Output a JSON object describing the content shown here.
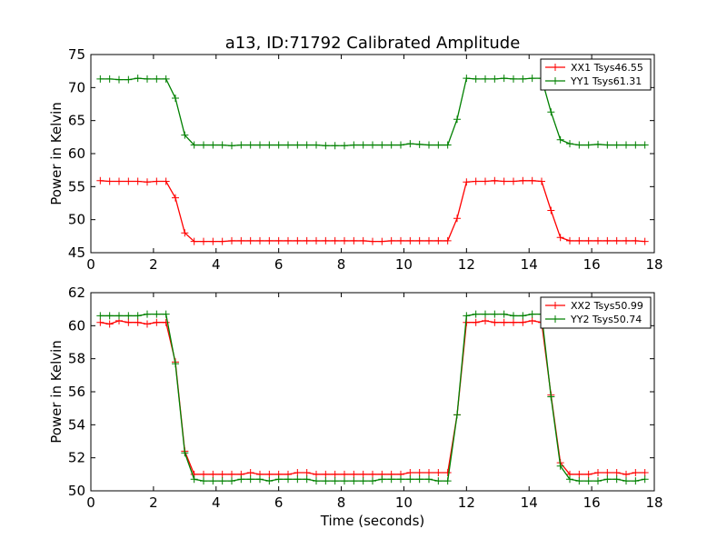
{
  "figure": {
    "title": "a13, ID:71792 Calibrated Amplitude"
  },
  "chart_data": [
    {
      "type": "line",
      "title": "a13, ID:71792 Calibrated Amplitude",
      "xlabel": "",
      "ylabel": "Power in Kelvin",
      "xlim": [
        0,
        18
      ],
      "ylim": [
        45,
        75
      ],
      "xticks": [
        0,
        2,
        4,
        6,
        8,
        10,
        12,
        14,
        16,
        18
      ],
      "yticks": [
        45,
        50,
        55,
        60,
        65,
        70,
        75
      ],
      "legend_position": "top-right",
      "grid": false,
      "x": [
        0.3,
        0.6,
        0.9,
        1.2,
        1.5,
        1.8,
        2.1,
        2.4,
        2.7,
        3.0,
        3.3,
        3.6,
        3.9,
        4.2,
        4.5,
        4.8,
        5.1,
        5.4,
        5.7,
        6.0,
        6.3,
        6.6,
        6.9,
        7.2,
        7.5,
        7.8,
        8.1,
        8.4,
        8.7,
        9.0,
        9.3,
        9.6,
        9.9,
        10.2,
        10.5,
        10.8,
        11.1,
        11.4,
        11.7,
        12.0,
        12.3,
        12.6,
        12.9,
        13.2,
        13.5,
        13.8,
        14.1,
        14.4,
        14.7,
        15.0,
        15.3,
        15.6,
        15.9,
        16.2,
        16.5,
        16.8,
        17.1,
        17.4,
        17.7
      ],
      "series": [
        {
          "name": "XX1 Tsys46.55",
          "color": "#ff0000",
          "values": [
            55.9,
            55.8,
            55.8,
            55.8,
            55.8,
            55.7,
            55.8,
            55.8,
            53.3,
            48.0,
            46.7,
            46.7,
            46.7,
            46.7,
            46.8,
            46.8,
            46.8,
            46.8,
            46.8,
            46.8,
            46.8,
            46.8,
            46.8,
            46.8,
            46.8,
            46.8,
            46.8,
            46.8,
            46.8,
            46.7,
            46.7,
            46.8,
            46.8,
            46.8,
            46.8,
            46.8,
            46.8,
            46.8,
            50.2,
            55.7,
            55.8,
            55.8,
            55.9,
            55.8,
            55.8,
            55.9,
            55.9,
            55.8,
            51.4,
            47.3,
            46.8,
            46.8,
            46.8,
            46.8,
            46.8,
            46.8,
            46.8,
            46.8,
            46.7
          ]
        },
        {
          "name": "YY1 Tsys61.31",
          "color": "#008000",
          "values": [
            71.3,
            71.3,
            71.2,
            71.2,
            71.4,
            71.3,
            71.3,
            71.3,
            68.4,
            62.8,
            61.3,
            61.3,
            61.3,
            61.3,
            61.2,
            61.3,
            61.3,
            61.3,
            61.3,
            61.3,
            61.3,
            61.3,
            61.3,
            61.3,
            61.2,
            61.2,
            61.2,
            61.3,
            61.3,
            61.3,
            61.3,
            61.3,
            61.3,
            61.5,
            61.4,
            61.3,
            61.3,
            61.3,
            65.2,
            71.4,
            71.3,
            71.3,
            71.3,
            71.4,
            71.3,
            71.3,
            71.4,
            71.4,
            66.3,
            62.1,
            61.5,
            61.3,
            61.3,
            61.4,
            61.3,
            61.3,
            61.3,
            61.3,
            61.3
          ]
        }
      ]
    },
    {
      "type": "line",
      "title": "",
      "xlabel": "Time (seconds)",
      "ylabel": "Power in Kelvin",
      "xlim": [
        0,
        18
      ],
      "ylim": [
        50,
        62
      ],
      "xticks": [
        0,
        2,
        4,
        6,
        8,
        10,
        12,
        14,
        16,
        18
      ],
      "yticks": [
        50,
        52,
        54,
        56,
        58,
        60,
        62
      ],
      "legend_position": "top-right",
      "grid": false,
      "x": [
        0.3,
        0.6,
        0.9,
        1.2,
        1.5,
        1.8,
        2.1,
        2.4,
        2.7,
        3.0,
        3.3,
        3.6,
        3.9,
        4.2,
        4.5,
        4.8,
        5.1,
        5.4,
        5.7,
        6.0,
        6.3,
        6.6,
        6.9,
        7.2,
        7.5,
        7.8,
        8.1,
        8.4,
        8.7,
        9.0,
        9.3,
        9.6,
        9.9,
        10.2,
        10.5,
        10.8,
        11.1,
        11.4,
        11.7,
        12.0,
        12.3,
        12.6,
        12.9,
        13.2,
        13.5,
        13.8,
        14.1,
        14.4,
        14.7,
        15.0,
        15.3,
        15.6,
        15.9,
        16.2,
        16.5,
        16.8,
        17.1,
        17.4,
        17.7
      ],
      "series": [
        {
          "name": "XX2 Tsys50.99",
          "color": "#ff0000",
          "values": [
            60.2,
            60.1,
            60.3,
            60.2,
            60.2,
            60.1,
            60.2,
            60.2,
            57.8,
            52.4,
            51.0,
            51.0,
            51.0,
            51.0,
            51.0,
            51.0,
            51.1,
            51.0,
            51.0,
            51.0,
            51.0,
            51.1,
            51.1,
            51.0,
            51.0,
            51.0,
            51.0,
            51.0,
            51.0,
            51.0,
            51.0,
            51.0,
            51.0,
            51.1,
            51.1,
            51.1,
            51.1,
            51.1,
            54.6,
            60.2,
            60.2,
            60.3,
            60.2,
            60.2,
            60.2,
            60.2,
            60.3,
            60.2,
            55.8,
            51.7,
            51.0,
            51.0,
            51.0,
            51.1,
            51.1,
            51.1,
            51.0,
            51.1,
            51.1
          ]
        },
        {
          "name": "YY2 Tsys50.74",
          "color": "#008000",
          "values": [
            60.6,
            60.6,
            60.6,
            60.6,
            60.6,
            60.7,
            60.7,
            60.7,
            57.7,
            52.3,
            50.7,
            50.6,
            50.6,
            50.6,
            50.6,
            50.7,
            50.7,
            50.7,
            50.6,
            50.7,
            50.7,
            50.7,
            50.7,
            50.6,
            50.6,
            50.6,
            50.6,
            50.6,
            50.6,
            50.6,
            50.7,
            50.7,
            50.7,
            50.7,
            50.7,
            50.7,
            50.6,
            50.6,
            54.6,
            60.6,
            60.7,
            60.7,
            60.7,
            60.7,
            60.6,
            60.6,
            60.7,
            60.7,
            55.7,
            51.5,
            50.7,
            50.6,
            50.6,
            50.6,
            50.7,
            50.7,
            50.6,
            50.6,
            50.7
          ]
        }
      ]
    }
  ]
}
